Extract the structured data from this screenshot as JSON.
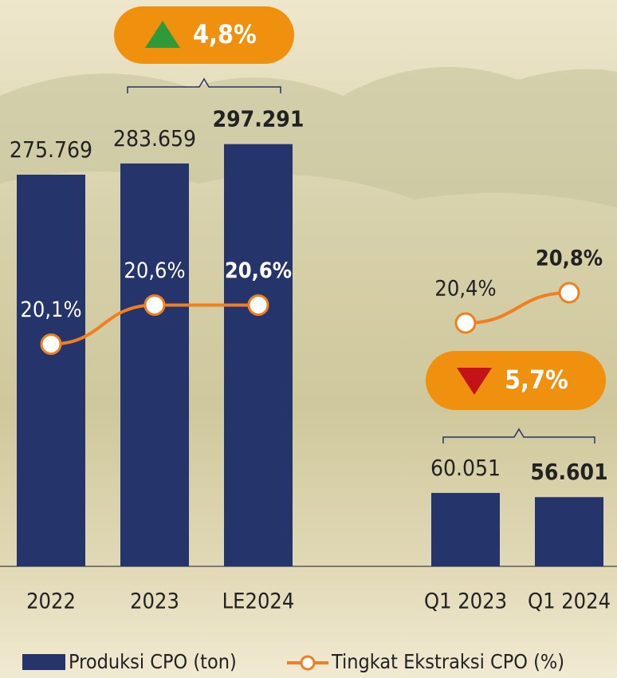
{
  "chart_data": [
    {
      "type": "bar_line",
      "categories": [
        "2022",
        "2023",
        "LE2024"
      ],
      "series": [
        {
          "name": "Produksi CPO (ton)",
          "color": "#25346b",
          "values": [
            275769,
            283659,
            297291
          ],
          "value_labels": [
            "275.769",
            "283.659",
            "297.291"
          ]
        },
        {
          "name": "Tingkat Ekstraksi CPO (%)",
          "color": "#f07f22",
          "axis": "y2",
          "values": [
            20.1,
            20.6,
            20.6
          ],
          "value_labels": [
            "20,1%",
            "20,6%",
            "20,6%"
          ]
        }
      ],
      "ylim": [
        0,
        342600
      ],
      "y2lim": [
        17.26,
        23.48
      ],
      "annotation": {
        "label": "4,8%",
        "direction": "up"
      }
    },
    {
      "type": "bar_line",
      "categories": [
        "Q1 2023",
        "Q1 2024"
      ],
      "series": [
        {
          "color": "#25346b",
          "values": [
            60051,
            56601
          ],
          "value_labels": [
            "60.051",
            "56.601"
          ]
        },
        {
          "color": "#f07f22",
          "axis": "y2",
          "values": [
            20.4,
            20.8
          ],
          "value_labels": [
            "20,4%",
            "20,8%"
          ]
        }
      ],
      "ylim": [
        0,
        398000
      ],
      "y2lim": [
        17.19,
        23.61
      ],
      "annotation": {
        "label": "5,7%",
        "direction": "down"
      }
    }
  ]
}
